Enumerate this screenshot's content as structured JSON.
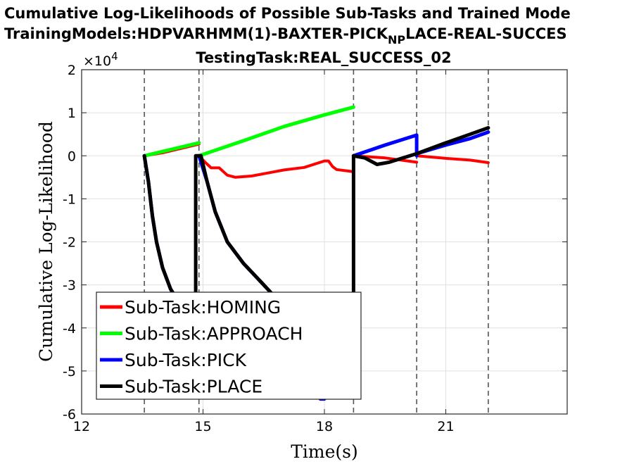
{
  "chart_data": {
    "type": "line",
    "title_line1": "Cumulative Log-Likelihoods of Possible Sub-Tasks and Trained Mode",
    "title_line2_pre": "TrainingModels:HDPVARHMM(1)-BAXTER-PICK",
    "title_line2_sub": "NP",
    "title_line2_post": "LACE-REAL-SUCCES",
    "title_line3": "TestingTask:REAL_SUCCESS_02",
    "xlabel": "Time(s)",
    "ylabel": "Cumulative Log-Likelihood",
    "y_exponent_label": "×10",
    "y_exponent_power": "4",
    "xlim": [
      12,
      24
    ],
    "ylim": [
      -6,
      2
    ],
    "xticks": [
      12,
      15,
      18,
      21
    ],
    "xtick_labels": [
      "12",
      "15",
      "18",
      "21"
    ],
    "yticks": [
      -6,
      -5,
      -4,
      -3,
      -2,
      -1,
      0,
      1,
      2
    ],
    "ytick_labels": [
      "-6",
      "-5",
      "-4",
      "-3",
      "-2",
      "-1",
      "0",
      "1",
      "2"
    ],
    "grid": true,
    "legend_position": "bottom-left",
    "vlines": [
      13.55,
      14.9,
      18.72,
      20.28,
      22.05
    ],
    "series": [
      {
        "name": "Sub-Task:HOMING",
        "color": "#ff0000",
        "width": 4,
        "segments": [
          [
            [
              13.55,
              0
            ],
            [
              14.0,
              0.07
            ],
            [
              14.5,
              0.18
            ],
            [
              14.9,
              0.27
            ]
          ],
          [
            [
              14.9,
              0
            ],
            [
              15.05,
              -0.15
            ],
            [
              15.2,
              -0.28
            ],
            [
              15.4,
              -0.28
            ],
            [
              15.6,
              -0.45
            ],
            [
              15.8,
              -0.5
            ],
            [
              16.2,
              -0.47
            ],
            [
              16.6,
              -0.4
            ],
            [
              17.0,
              -0.33
            ],
            [
              17.5,
              -0.27
            ],
            [
              18.0,
              -0.12
            ],
            [
              18.1,
              -0.12
            ],
            [
              18.2,
              -0.25
            ],
            [
              18.3,
              -0.32
            ],
            [
              18.72,
              -0.37
            ]
          ],
          [
            [
              18.72,
              0
            ],
            [
              19.5,
              -0.05
            ],
            [
              20.28,
              -0.15
            ]
          ],
          [
            [
              20.28,
              0
            ],
            [
              21.0,
              -0.06
            ],
            [
              21.6,
              -0.1
            ],
            [
              22.05,
              -0.16
            ]
          ]
        ]
      },
      {
        "name": "Sub-Task:APPROACH",
        "color": "#00ff00",
        "width": 5,
        "segments": [
          [
            [
              13.55,
              0
            ],
            [
              14.9,
              0.3
            ]
          ],
          [
            [
              14.9,
              0
            ],
            [
              16.0,
              0.35
            ],
            [
              17.0,
              0.68
            ],
            [
              18.0,
              0.95
            ],
            [
              18.72,
              1.13
            ]
          ]
        ]
      },
      {
        "name": "Sub-Task:PICK",
        "color": "#0000ff",
        "width": 5,
        "segments": [
          [
            [
              13.55,
              0
            ],
            [
              13.65,
              -0.6
            ],
            [
              13.75,
              -1.4
            ],
            [
              13.85,
              -2.0
            ],
            [
              14.0,
              -2.6
            ],
            [
              14.2,
              -3.1
            ],
            [
              14.4,
              -3.4
            ]
          ],
          [
            [
              14.9,
              0
            ],
            [
              15.1,
              -0.6
            ],
            [
              15.3,
              -1.3
            ],
            [
              15.6,
              -2.0
            ],
            [
              16.0,
              -2.5
            ],
            [
              16.5,
              -3.0
            ],
            [
              16.7,
              -3.2
            ]
          ],
          [
            [
              17.9,
              -5.65
            ],
            [
              18.0,
              -5.65
            ]
          ],
          [
            [
              18.72,
              0
            ],
            [
              19.5,
              0.25
            ],
            [
              20.28,
              0.48
            ],
            [
              20.28,
              0
            ]
          ],
          [
            [
              20.28,
              0.05
            ],
            [
              21.0,
              0.25
            ],
            [
              21.6,
              0.4
            ],
            [
              22.05,
              0.55
            ]
          ]
        ]
      },
      {
        "name": "Sub-Task:PLACE",
        "color": "#000000",
        "width": 5,
        "segments": [
          [
            [
              13.55,
              0
            ],
            [
              13.65,
              -0.6
            ],
            [
              13.75,
              -1.4
            ],
            [
              13.85,
              -2.0
            ],
            [
              14.0,
              -2.6
            ],
            [
              14.2,
              -3.1
            ],
            [
              14.4,
              -3.4
            ]
          ],
          [
            [
              14.82,
              -3.2
            ],
            [
              14.82,
              0
            ],
            [
              14.95,
              0
            ]
          ],
          [
            [
              14.95,
              0
            ],
            [
              15.1,
              -0.6
            ],
            [
              15.3,
              -1.3
            ],
            [
              15.6,
              -2.0
            ],
            [
              16.0,
              -2.5
            ],
            [
              16.5,
              -3.0
            ],
            [
              16.7,
              -3.2
            ]
          ],
          [
            [
              18.72,
              -3.2
            ],
            [
              18.72,
              0
            ]
          ],
          [
            [
              18.72,
              0
            ],
            [
              19.0,
              -0.05
            ],
            [
              19.3,
              -0.2
            ],
            [
              19.6,
              -0.15
            ],
            [
              20.28,
              0.05
            ],
            [
              21.0,
              0.3
            ],
            [
              21.6,
              0.5
            ],
            [
              22.05,
              0.65
            ]
          ]
        ]
      }
    ]
  }
}
